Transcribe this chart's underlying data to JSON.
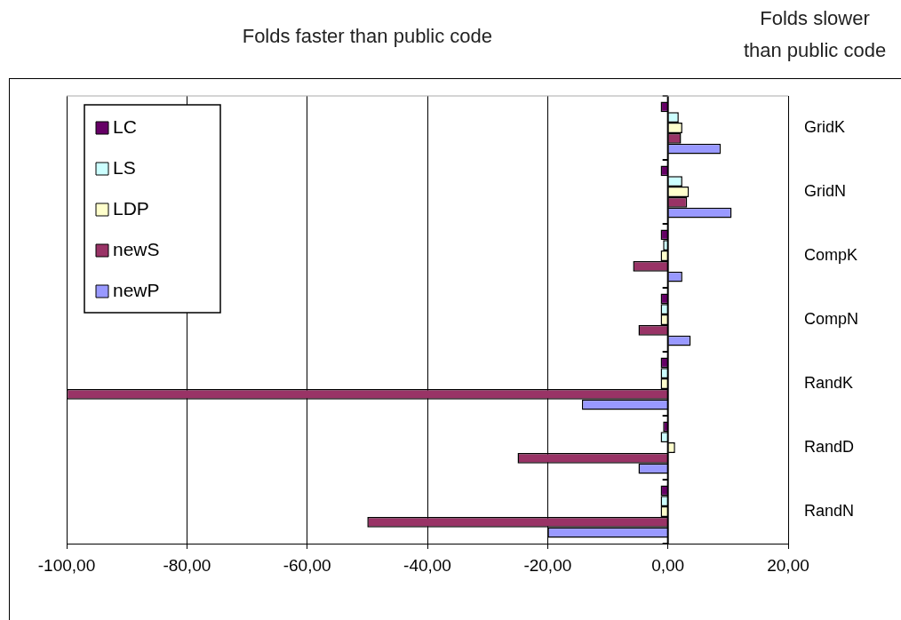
{
  "chart_data": {
    "type": "bar",
    "orientation": "horizontal",
    "categories": [
      "GridK",
      "GridN",
      "CompK",
      "CompN",
      "RandK",
      "RandD",
      "RandN"
    ],
    "series": [
      {
        "name": "LC",
        "color": "#660066",
        "values": [
          -1.2,
          -1.2,
          -1.2,
          -1.2,
          -1.2,
          -0.8,
          -1.2
        ]
      },
      {
        "name": "LS",
        "color": "#ccffff",
        "values": [
          1.8,
          2.4,
          -0.8,
          -1.2,
          -1.2,
          -1.2,
          -1.2
        ]
      },
      {
        "name": "LDP",
        "color": "#ffffcc",
        "values": [
          2.4,
          3.5,
          -1.2,
          -1.2,
          -1.2,
          1.2,
          -1.2
        ]
      },
      {
        "name": "newS",
        "color": "#993366",
        "values": [
          2.2,
          3.2,
          -5.8,
          -4.9,
          -100,
          -25,
          -50
        ]
      },
      {
        "name": "newP",
        "color": "#9999ff",
        "values": [
          8.8,
          10.6,
          2.4,
          3.8,
          -14.3,
          -4.9,
          -20
        ]
      }
    ],
    "xlim": [
      -100,
      20
    ],
    "xticks": [
      {
        "value": -100,
        "label": "-100,00"
      },
      {
        "value": -80,
        "label": "-80,00"
      },
      {
        "value": -60,
        "label": "-60,00"
      },
      {
        "value": -40,
        "label": "-40,00"
      },
      {
        "value": -20,
        "label": "-20,00"
      },
      {
        "value": 0,
        "label": "0,00"
      },
      {
        "value": 20,
        "label": "20,00"
      }
    ],
    "annotations": [
      "Folds faster than public code",
      "Folds slower\nthan public code"
    ],
    "grid": "x",
    "legend": "top left"
  }
}
